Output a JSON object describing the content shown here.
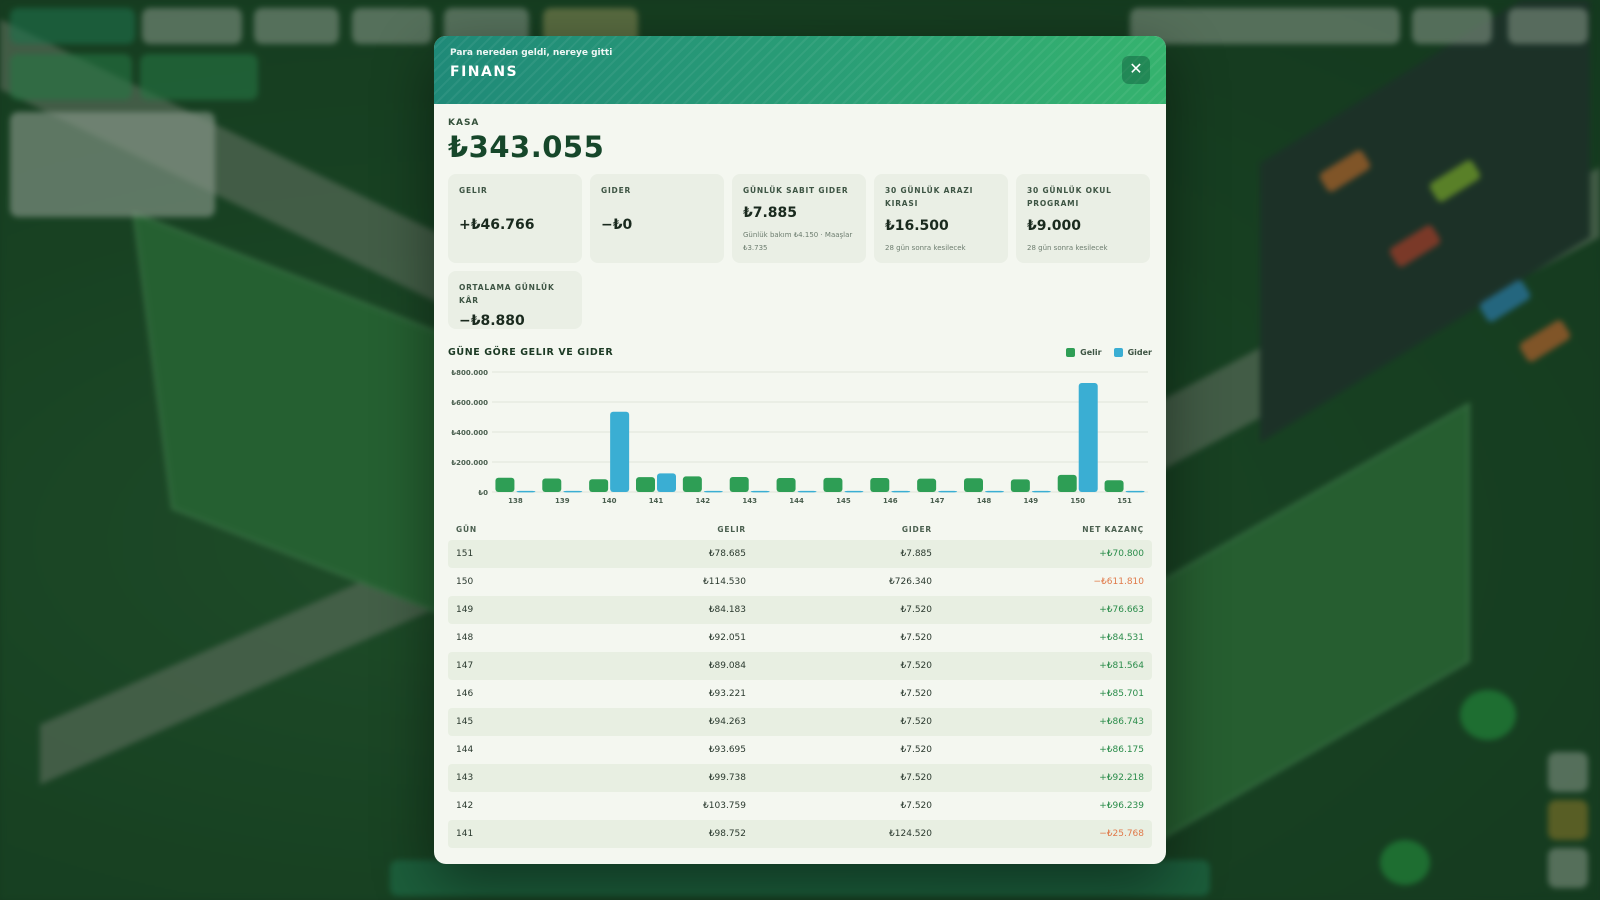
{
  "header": {
    "subtitle": "Para nereden geldi, nereye gitti",
    "title": "FINANS",
    "close_label": "✕"
  },
  "kasa": {
    "label": "KASA",
    "value": "₺343.055"
  },
  "cards": [
    {
      "label": "GELIR",
      "value": "+₺46.766",
      "note": ""
    },
    {
      "label": "GIDER",
      "value": "−₺0",
      "note": ""
    },
    {
      "label": "GÜNLÜK SABIT GIDER",
      "value": "₺7.885",
      "note": "Günlük bakım ₺4.150 · Maaşlar ₺3.735"
    },
    {
      "label": "30 GÜNLÜK ARAZI KIRASI",
      "value": "₺16.500",
      "note": "28 gün sonra kesilecek"
    },
    {
      "label": "30 GÜNLÜK OKUL PROGRAMI",
      "value": "₺9.000",
      "note": "28 gün sonra kesilecek"
    },
    {
      "label": "ORTALAMA GÜNLÜK KÂR",
      "value": "−₺8.880",
      "note": ""
    }
  ],
  "chart_title": "GÜNE GÖRE GELIR VE GIDER",
  "legend": {
    "gelir": "Gelir",
    "gider": "Gider"
  },
  "colors": {
    "gelir": "#2e9e55",
    "gider": "#3aaed3",
    "positive": "#2a8c4a",
    "negative": "#e07a4a",
    "header_start": "#1f8a78",
    "header_end": "#35b36e"
  },
  "chart_data": {
    "type": "bar",
    "categories": [
      "138",
      "139",
      "140",
      "141",
      "142",
      "143",
      "144",
      "145",
      "146",
      "147",
      "148",
      "149",
      "150",
      "151"
    ],
    "series": [
      {
        "name": "Gelir",
        "values": [
          95000,
          90000,
          85000,
          98752,
          103759,
          99738,
          93695,
          94263,
          93221,
          89084,
          92051,
          84183,
          114530,
          78685
        ]
      },
      {
        "name": "Gider",
        "values": [
          7520,
          7520,
          535000,
          124520,
          7520,
          7520,
          7520,
          7520,
          7520,
          7520,
          7520,
          7520,
          726340,
          7885
        ]
      }
    ],
    "yticks": [
      "₺800.000",
      "₺600.000",
      "₺400.000",
      "₺200.000",
      "₺0"
    ],
    "ytick_values": [
      800000,
      600000,
      400000,
      200000,
      0
    ],
    "ylim": [
      0,
      800000
    ],
    "grid": true,
    "legend_position": "top-right"
  },
  "table": {
    "headers": {
      "day": "GÜN",
      "gelir": "GELIR",
      "gider": "GIDER",
      "net": "NET KAZANÇ"
    },
    "rows": [
      {
        "day": "151",
        "gelir": "₺78.685",
        "gider": "₺7.885",
        "net": "+₺70.800",
        "positive": true
      },
      {
        "day": "150",
        "gelir": "₺114.530",
        "gider": "₺726.340",
        "net": "−₺611.810",
        "positive": false
      },
      {
        "day": "149",
        "gelir": "₺84.183",
        "gider": "₺7.520",
        "net": "+₺76.663",
        "positive": true
      },
      {
        "day": "148",
        "gelir": "₺92.051",
        "gider": "₺7.520",
        "net": "+₺84.531",
        "positive": true
      },
      {
        "day": "147",
        "gelir": "₺89.084",
        "gider": "₺7.520",
        "net": "+₺81.564",
        "positive": true
      },
      {
        "day": "146",
        "gelir": "₺93.221",
        "gider": "₺7.520",
        "net": "+₺85.701",
        "positive": true
      },
      {
        "day": "145",
        "gelir": "₺94.263",
        "gider": "₺7.520",
        "net": "+₺86.743",
        "positive": true
      },
      {
        "day": "144",
        "gelir": "₺93.695",
        "gider": "₺7.520",
        "net": "+₺86.175",
        "positive": true
      },
      {
        "day": "143",
        "gelir": "₺99.738",
        "gider": "₺7.520",
        "net": "+₺92.218",
        "positive": true
      },
      {
        "day": "142",
        "gelir": "₺103.759",
        "gider": "₺7.520",
        "net": "+₺96.239",
        "positive": true
      },
      {
        "day": "141",
        "gelir": "₺98.752",
        "gider": "₺124.520",
        "net": "−₺25.768",
        "positive": false
      }
    ]
  }
}
